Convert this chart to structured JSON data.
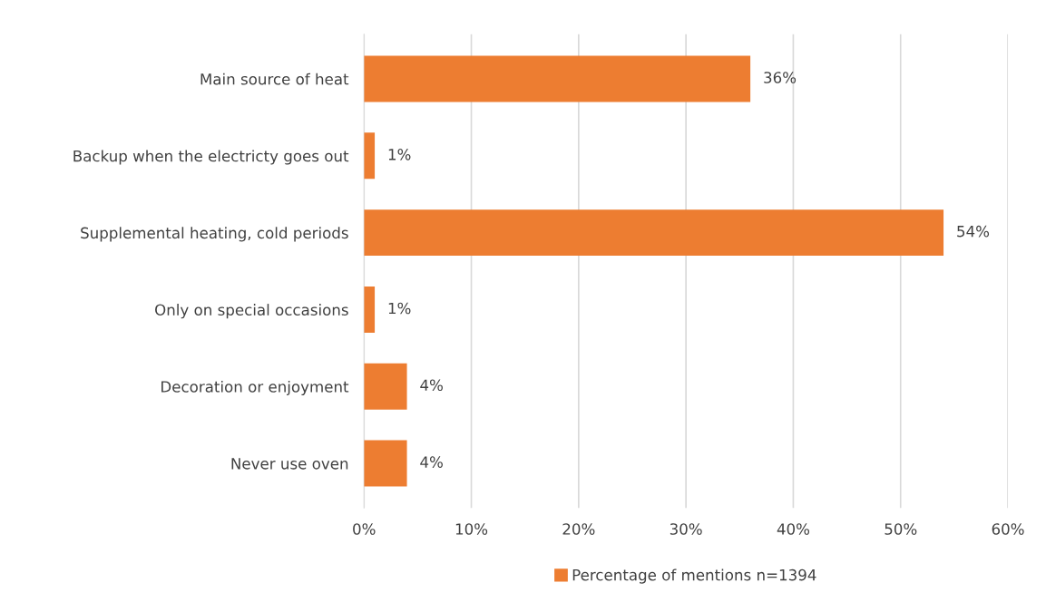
{
  "chart_data": {
    "type": "bar",
    "orientation": "horizontal",
    "categories": [
      "Main source of heat",
      "Backup when the electricty goes out",
      "Supplemental heating, cold periods",
      "Only on special occasions",
      "Decoration or enjoyment",
      "Never use oven"
    ],
    "series": [
      {
        "name": "Percentage of mentions n=1394",
        "color": "#ed7d31",
        "values": [
          36,
          1,
          54,
          1,
          4,
          4
        ],
        "value_labels": [
          "36%",
          "1%",
          "54%",
          "1%",
          "4%",
          "4%"
        ]
      }
    ],
    "xlim": [
      0,
      60
    ],
    "xticks": [
      {
        "value": 0,
        "label": "0%"
      },
      {
        "value": 10,
        "label": "10%"
      },
      {
        "value": 20,
        "label": "20%"
      },
      {
        "value": 30,
        "label": "30%"
      },
      {
        "value": 40,
        "label": "40%"
      },
      {
        "value": 50,
        "label": "50%"
      },
      {
        "value": 60,
        "label": "60%"
      }
    ],
    "grid": "x",
    "legend": "bottom"
  }
}
